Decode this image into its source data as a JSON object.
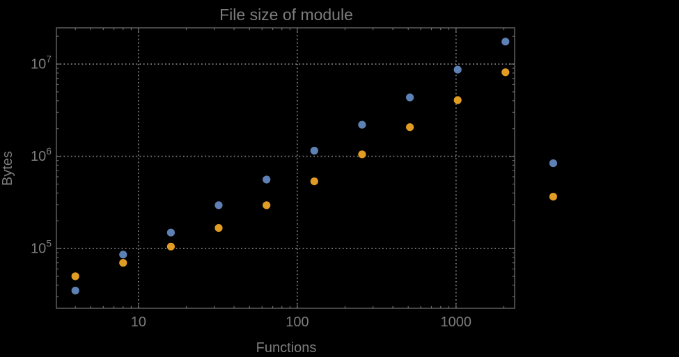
{
  "colors": {
    "background": "#000000",
    "frame": "#6b6b6b",
    "gridline": "#7a7a7a",
    "text": "#7d7d7d",
    "series1": "#5E81B5",
    "series2": "#E19C24"
  },
  "chart_data": {
    "type": "scatter",
    "title": "File size of module",
    "xlabel": "Functions",
    "ylabel": "Bytes",
    "x_scale": "log",
    "y_scale": "log",
    "xlim": [
      3.04,
      2340
    ],
    "ylim": [
      22500,
      24700000
    ],
    "grid": "dotted",
    "legend": "none",
    "x": [
      4,
      8,
      16,
      32,
      64,
      128,
      256,
      512,
      1024,
      2048,
      4096
    ],
    "series": [
      {
        "name": "series-1-blue",
        "color": "#5E81B5",
        "values": [
          35000,
          86000,
          149000,
          295000,
          560000,
          1150000,
          2200000,
          4350000,
          8700000,
          17500000,
          840000
        ]
      },
      {
        "name": "series-2-orange",
        "color": "#E19C24",
        "values": [
          50000,
          70000,
          105000,
          167000,
          295000,
          535000,
          1050000,
          2070000,
          4060000,
          8150000,
          365000
        ]
      }
    ],
    "x_tick_labels": [
      {
        "value": 10,
        "label": "10"
      },
      {
        "value": 100,
        "label": "100"
      },
      {
        "value": 1000,
        "label": "1000"
      }
    ],
    "y_tick_labels": [
      {
        "value": 100000,
        "base": "10",
        "exponent": "5"
      },
      {
        "value": 1000000,
        "base": "10",
        "exponent": "6"
      },
      {
        "value": 10000000,
        "base": "10",
        "exponent": "7"
      }
    ]
  }
}
